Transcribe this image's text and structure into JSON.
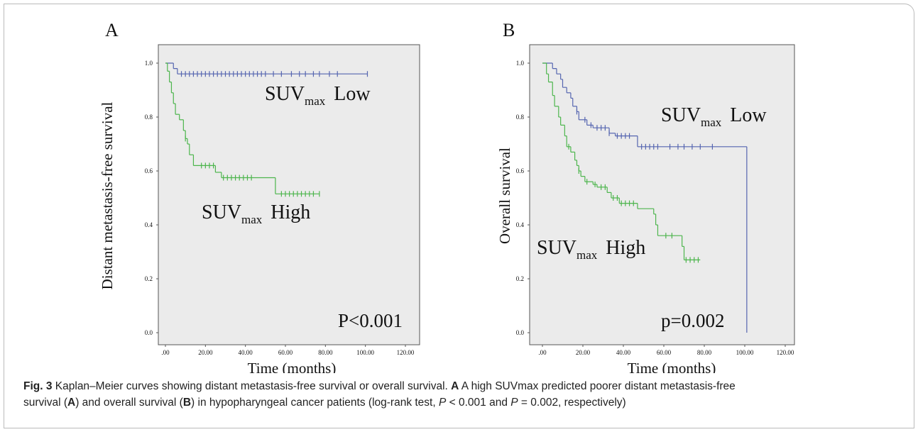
{
  "chart_data": [
    {
      "type": "km",
      "panel": "A",
      "ylabel": "Distant metastasis-free survival",
      "xlabel": "Time (months)",
      "p_value": "P<0.001",
      "xlim": [
        0,
        120
      ],
      "ylim": [
        0,
        1
      ],
      "xticks": [
        {
          "value": 0,
          "label": ".00"
        },
        {
          "value": 20,
          "label": "20.00"
        },
        {
          "value": 40,
          "label": "40.00"
        },
        {
          "value": 60,
          "label": "60.00"
        },
        {
          "value": 80,
          "label": "80.00"
        },
        {
          "value": 100,
          "label": "100.00"
        },
        {
          "value": 120,
          "label": "120.00"
        }
      ],
      "yticks": [
        {
          "value": 0,
          "label": "0.0"
        },
        0.2,
        0.4,
        0.6,
        0.8,
        {
          "value": 1,
          "label": "1.0"
        }
      ],
      "series": [
        {
          "color": "#5565b0",
          "x": [
            0,
            4,
            6,
            101
          ],
          "values": [
            1.0,
            0.98,
            0.96,
            0.96
          ],
          "censored": [
            8,
            10,
            12,
            14,
            16,
            18,
            20,
            22,
            24,
            26,
            28,
            30,
            32,
            34,
            36,
            38,
            40,
            42,
            44,
            46,
            48,
            50,
            54,
            58,
            63,
            67,
            70,
            74,
            77,
            82,
            86,
            101
          ]
        },
        {
          "color": "#4cb54c",
          "x": [
            0,
            1,
            2,
            3,
            4,
            5,
            7,
            9,
            10,
            11,
            12,
            14,
            25,
            28,
            55,
            77
          ],
          "values": [
            1.0,
            0.97,
            0.93,
            0.89,
            0.85,
            0.81,
            0.79,
            0.75,
            0.72,
            0.7,
            0.66,
            0.62,
            0.595,
            0.575,
            0.515,
            0.515
          ],
          "censored": [
            10,
            18,
            20,
            22,
            24,
            29,
            31,
            33,
            35,
            37,
            39,
            41,
            43,
            58,
            60,
            62,
            64,
            66,
            68,
            70,
            72,
            74,
            77
          ]
        }
      ],
      "annotations": [
        {
          "text": "SUV",
          "sub": "max",
          "rest": "Low"
        },
        {
          "text": "SUV",
          "sub": "max",
          "rest": "High"
        }
      ]
    },
    {
      "type": "km",
      "panel": "B",
      "ylabel": "Overall survival",
      "xlabel": "Time (months)",
      "p_value": "p=0.002",
      "xlim": [
        0,
        120
      ],
      "ylim": [
        0,
        1
      ],
      "xticks": [
        {
          "value": 0,
          "label": ".00"
        },
        {
          "value": 20,
          "label": "20.00"
        },
        {
          "value": 40,
          "label": "40.00"
        },
        {
          "value": 60,
          "label": "60.00"
        },
        {
          "value": 80,
          "label": "80.00"
        },
        {
          "value": 100,
          "label": "100.00"
        },
        {
          "value": 120,
          "label": "120.00"
        }
      ],
      "yticks": [
        {
          "value": 0,
          "label": "0.0"
        },
        0.2,
        0.4,
        0.6,
        0.8,
        {
          "value": 1,
          "label": "1.0"
        }
      ],
      "series": [
        {
          "color": "#5565b0",
          "x": [
            0,
            5,
            7,
            9,
            10,
            12,
            14,
            15,
            17,
            18,
            22,
            25,
            33,
            36,
            47,
            101
          ],
          "values": [
            1.0,
            0.98,
            0.96,
            0.94,
            0.91,
            0.89,
            0.87,
            0.84,
            0.82,
            0.79,
            0.77,
            0.76,
            0.74,
            0.73,
            0.69,
            0.0
          ],
          "censored": [
            17,
            21,
            24,
            27,
            29,
            31,
            33,
            37,
            39,
            41,
            43,
            49,
            51,
            53,
            55,
            57,
            63,
            67,
            70,
            74,
            78,
            84
          ]
        },
        {
          "color": "#4cb54c",
          "x": [
            0,
            2,
            3,
            5,
            6,
            8,
            9,
            11,
            12,
            14,
            16,
            17,
            18,
            19,
            21,
            25,
            27,
            32,
            34,
            38,
            47,
            55,
            56,
            57,
            69,
            70,
            78
          ],
          "values": [
            1.0,
            0.96,
            0.93,
            0.88,
            0.84,
            0.8,
            0.77,
            0.73,
            0.69,
            0.67,
            0.64,
            0.62,
            0.6,
            0.58,
            0.56,
            0.55,
            0.54,
            0.52,
            0.5,
            0.48,
            0.46,
            0.44,
            0.4,
            0.36,
            0.32,
            0.27,
            0.27
          ],
          "censored": [
            13,
            18,
            22,
            26,
            29,
            31,
            35,
            37,
            39,
            41,
            43,
            45,
            61,
            64,
            71,
            73,
            75,
            77
          ]
        }
      ],
      "annotations": [
        {
          "text": "SUV",
          "sub": "max",
          "rest": "Low"
        },
        {
          "text": "SUV",
          "sub": "max",
          "rest": "High"
        }
      ]
    }
  ],
  "caption": {
    "lines": [
      [
        {
          "text": "Fig. 3",
          "style": "b"
        },
        {
          "text": " Kaplan–Meier curves showing distant metastasis-free survival or overall survival. "
        },
        {
          "text": "A",
          "style": "b"
        },
        {
          "text": " A high SUVmax predicted poorer distant metastasis-free"
        }
      ],
      [
        {
          "text": "survival ("
        },
        {
          "text": "A",
          "style": "b"
        },
        {
          "text": ") and overall survival ("
        },
        {
          "text": "B",
          "style": "b"
        },
        {
          "text": ") in hypopharyngeal cancer patients (log-rank test, "
        },
        {
          "text": "P",
          "style": "i"
        },
        {
          "text": " < 0.001 and "
        },
        {
          "text": "P",
          "style": "i"
        },
        {
          "text": " = 0.002, respectively)"
        }
      ]
    ]
  }
}
